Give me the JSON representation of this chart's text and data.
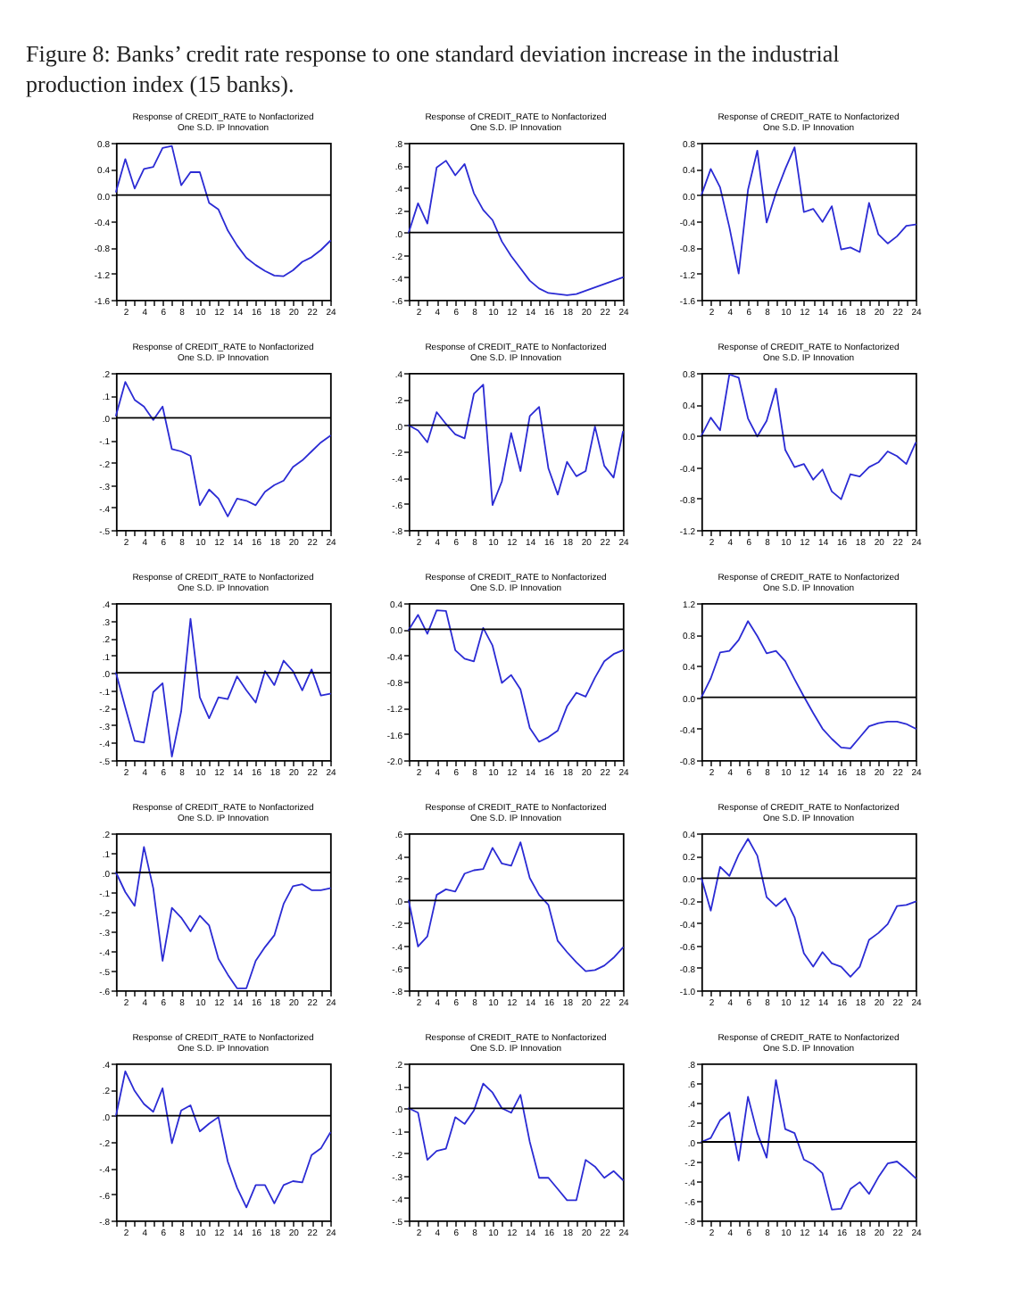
{
  "chart_data": [
    {
      "type": "line",
      "title": "Response of CREDIT_RATE to Nonfactorized\nOne S.D. IP Innovation",
      "annotations": [
        "Figure 8: Banks’ credit rate response to one standard deviation increase in the industrial production index (15 banks)."
      ],
      "x": [
        1,
        2,
        3,
        4,
        5,
        6,
        7,
        8,
        9,
        10,
        11,
        12,
        13,
        14,
        15,
        16,
        17,
        18,
        19,
        20,
        21,
        22,
        23,
        24
      ],
      "series": [
        {
          "color": "#2b2bd4",
          "values": [
            0.05,
            0.55,
            0.1,
            0.4,
            0.43,
            0.72,
            0.75,
            0.15,
            0.35,
            0.35,
            -0.12,
            -0.22,
            -0.54,
            -0.77,
            -0.96,
            -1.07,
            -1.16,
            -1.23,
            -1.24,
            -1.15,
            -1.02,
            -0.95,
            -0.84,
            -0.7
          ]
        }
      ],
      "xlim": [
        1,
        24
      ],
      "xticks": [
        {
          "value": 1,
          "label": null
        },
        2,
        {
          "value": 3,
          "label": null
        },
        4,
        {
          "value": 5,
          "label": null
        },
        6,
        {
          "value": 7,
          "label": null
        },
        8,
        {
          "value": 9,
          "label": null
        },
        10,
        {
          "value": 11,
          "label": null
        },
        12,
        {
          "value": 13,
          "label": null
        },
        14,
        {
          "value": 15,
          "label": null
        },
        16,
        {
          "value": 17,
          "label": null
        },
        18,
        {
          "value": 19,
          "label": null
        },
        20,
        {
          "value": 21,
          "label": null
        },
        22,
        {
          "value": 23,
          "label": null
        },
        24
      ],
      "ylim": [
        -1.6,
        0.8
      ],
      "yticks": [
        -1.6,
        -1.2,
        -0.8,
        -0.4,
        {
          "value": 0,
          "label": "0.0"
        },
        0.4,
        0.8
      ],
      "ref_lines": [
        {
          "axis": "y",
          "value": 0,
          "color": "#000000"
        }
      ]
    },
    {
      "type": "line",
      "title": "Response of CREDIT_RATE to Nonfactorized\nOne S.D. IP Innovation",
      "x": [
        1,
        2,
        3,
        4,
        5,
        6,
        7,
        8,
        9,
        10,
        11,
        12,
        13,
        14,
        15,
        16,
        17,
        18,
        19,
        20,
        21,
        22,
        23,
        24
      ],
      "series": [
        {
          "color": "#2b2bd4",
          "values": [
            0,
            0.26,
            0.08,
            0.58,
            0.64,
            0.51,
            0.61,
            0.35,
            0.2,
            0.11,
            -0.08,
            -0.21,
            -0.32,
            -0.43,
            -0.5,
            -0.54,
            -0.55,
            -0.56,
            -0.55,
            -0.52,
            -0.49,
            -0.46,
            -0.43,
            -0.4
          ]
        }
      ],
      "xlim": [
        1,
        24
      ],
      "xticks": [
        {
          "value": 1,
          "label": null
        },
        2,
        {
          "value": 3,
          "label": null
        },
        4,
        {
          "value": 5,
          "label": null
        },
        6,
        {
          "value": 7,
          "label": null
        },
        8,
        {
          "value": 9,
          "label": null
        },
        10,
        {
          "value": 11,
          "label": null
        },
        12,
        {
          "value": 13,
          "label": null
        },
        14,
        {
          "value": 15,
          "label": null
        },
        16,
        {
          "value": 17,
          "label": null
        },
        18,
        {
          "value": 19,
          "label": null
        },
        20,
        {
          "value": 21,
          "label": null
        },
        22,
        {
          "value": 23,
          "label": null
        },
        24
      ],
      "ylim": [
        -0.6,
        0.8
      ],
      "yticks": [
        {
          "value": -0.6,
          "label": "-.6"
        },
        {
          "value": -0.4,
          "label": "-.4"
        },
        {
          "value": -0.2,
          "label": "-.2"
        },
        {
          "value": 0,
          "label": ".0"
        },
        {
          "value": 0.2,
          "label": ".2"
        },
        {
          "value": 0.4,
          "label": ".4"
        },
        {
          "value": 0.6,
          "label": ".6"
        },
        {
          "value": 0.8,
          "label": ".8"
        }
      ],
      "ref_lines": [
        {
          "axis": "y",
          "value": 0,
          "color": "#000000"
        }
      ]
    },
    {
      "type": "line",
      "title": "Response of CREDIT_RATE to Nonfactorized\nOne S.D. IP Innovation",
      "x": [
        1,
        2,
        3,
        4,
        5,
        6,
        7,
        8,
        9,
        10,
        11,
        12,
        13,
        14,
        15,
        16,
        17,
        18,
        19,
        20,
        21,
        22,
        23,
        24
      ],
      "series": [
        {
          "color": "#2b2bd4",
          "values": [
            0,
            0.4,
            0.12,
            -0.49,
            -1.2,
            0.08,
            0.68,
            -0.42,
            0.03,
            0.4,
            0.73,
            -0.26,
            -0.21,
            -0.41,
            -0.17,
            -0.83,
            -0.8,
            -0.87,
            -0.12,
            -0.6,
            -0.74,
            -0.63,
            -0.47,
            -0.45
          ]
        }
      ],
      "xlim": [
        1,
        24
      ],
      "xticks": [
        {
          "value": 1,
          "label": null
        },
        2,
        {
          "value": 3,
          "label": null
        },
        4,
        {
          "value": 5,
          "label": null
        },
        6,
        {
          "value": 7,
          "label": null
        },
        8,
        {
          "value": 9,
          "label": null
        },
        10,
        {
          "value": 11,
          "label": null
        },
        12,
        {
          "value": 13,
          "label": null
        },
        14,
        {
          "value": 15,
          "label": null
        },
        16,
        {
          "value": 17,
          "label": null
        },
        18,
        {
          "value": 19,
          "label": null
        },
        20,
        {
          "value": 21,
          "label": null
        },
        22,
        {
          "value": 23,
          "label": null
        },
        24
      ],
      "ylim": [
        -1.6,
        0.8
      ],
      "yticks": [
        -1.6,
        -1.2,
        -0.8,
        -0.4,
        {
          "value": 0,
          "label": "0.0"
        },
        0.4,
        0.8
      ],
      "ref_lines": [
        {
          "axis": "y",
          "value": 0,
          "color": "#000000"
        }
      ]
    },
    {
      "type": "line",
      "title": "Response of CREDIT_RATE to Nonfactorized\nOne S.D. IP Innovation",
      "x": [
        1,
        2,
        3,
        4,
        5,
        6,
        7,
        8,
        9,
        10,
        11,
        12,
        13,
        14,
        15,
        16,
        17,
        18,
        19,
        20,
        21,
        22,
        23,
        24
      ],
      "series": [
        {
          "color": "#2b2bd4",
          "values": [
            0.01,
            0.16,
            0.08,
            0.05,
            -0.01,
            0.05,
            -0.14,
            -0.15,
            -0.17,
            -0.39,
            -0.32,
            -0.36,
            -0.44,
            -0.36,
            -0.37,
            -0.39,
            -0.33,
            -0.3,
            -0.28,
            -0.22,
            -0.19,
            -0.15,
            -0.11,
            -0.08
          ]
        }
      ],
      "xlim": [
        1,
        24
      ],
      "xticks": [
        {
          "value": 1,
          "label": null
        },
        2,
        {
          "value": 3,
          "label": null
        },
        4,
        {
          "value": 5,
          "label": null
        },
        6,
        {
          "value": 7,
          "label": null
        },
        8,
        {
          "value": 9,
          "label": null
        },
        10,
        {
          "value": 11,
          "label": null
        },
        12,
        {
          "value": 13,
          "label": null
        },
        14,
        {
          "value": 15,
          "label": null
        },
        16,
        {
          "value": 17,
          "label": null
        },
        18,
        {
          "value": 19,
          "label": null
        },
        20,
        {
          "value": 21,
          "label": null
        },
        22,
        {
          "value": 23,
          "label": null
        },
        24
      ],
      "ylim": [
        -0.5,
        0.2
      ],
      "yticks": [
        {
          "value": -0.5,
          "label": "-.5"
        },
        {
          "value": -0.4,
          "label": "-.4"
        },
        {
          "value": -0.3,
          "label": "-.3"
        },
        {
          "value": -0.2,
          "label": "-.2"
        },
        {
          "value": -0.1,
          "label": "-.1"
        },
        {
          "value": 0,
          "label": ".0"
        },
        {
          "value": 0.1,
          "label": ".1"
        },
        {
          "value": 0.2,
          "label": ".2"
        }
      ],
      "ref_lines": [
        {
          "axis": "y",
          "value": 0,
          "color": "#000000"
        }
      ]
    },
    {
      "type": "line",
      "title": "Response of CREDIT_RATE to Nonfactorized\nOne S.D. IP Innovation",
      "x": [
        1,
        2,
        3,
        4,
        5,
        6,
        7,
        8,
        9,
        10,
        11,
        12,
        13,
        14,
        15,
        16,
        17,
        18,
        19,
        20,
        21,
        22,
        23,
        24
      ],
      "series": [
        {
          "color": "#2b2bd4",
          "values": [
            0,
            -0.04,
            -0.13,
            0.1,
            0.01,
            -0.07,
            -0.1,
            0.24,
            0.31,
            -0.61,
            -0.43,
            -0.06,
            -0.35,
            0.07,
            0.14,
            -0.33,
            -0.53,
            -0.28,
            -0.39,
            -0.35,
            -0.01,
            -0.31,
            -0.4,
            -0.05
          ]
        }
      ],
      "xlim": [
        1,
        24
      ],
      "xticks": [
        {
          "value": 1,
          "label": null
        },
        2,
        {
          "value": 3,
          "label": null
        },
        4,
        {
          "value": 5,
          "label": null
        },
        6,
        {
          "value": 7,
          "label": null
        },
        8,
        {
          "value": 9,
          "label": null
        },
        10,
        {
          "value": 11,
          "label": null
        },
        12,
        {
          "value": 13,
          "label": null
        },
        14,
        {
          "value": 15,
          "label": null
        },
        16,
        {
          "value": 17,
          "label": null
        },
        18,
        {
          "value": 19,
          "label": null
        },
        20,
        {
          "value": 21,
          "label": null
        },
        22,
        {
          "value": 23,
          "label": null
        },
        24
      ],
      "ylim": [
        -0.8,
        0.4
      ],
      "yticks": [
        {
          "value": -0.8,
          "label": "-.8"
        },
        {
          "value": -0.6,
          "label": "-.6"
        },
        {
          "value": -0.4,
          "label": "-.4"
        },
        {
          "value": -0.2,
          "label": "-.2"
        },
        {
          "value": 0,
          "label": ".0"
        },
        {
          "value": 0.2,
          "label": ".2"
        },
        {
          "value": 0.4,
          "label": ".4"
        }
      ],
      "ref_lines": [
        {
          "axis": "y",
          "value": 0,
          "color": "#000000"
        }
      ]
    },
    {
      "type": "line",
      "title": "Response of CREDIT_RATE to Nonfactorized\nOne S.D. IP Innovation",
      "x": [
        1,
        2,
        3,
        4,
        5,
        6,
        7,
        8,
        9,
        10,
        11,
        12,
        13,
        14,
        15,
        16,
        17,
        18,
        19,
        20,
        21,
        22,
        23,
        24
      ],
      "series": [
        {
          "color": "#2b2bd4",
          "values": [
            0,
            0.23,
            0.07,
            0.78,
            0.74,
            0.22,
            -0.01,
            0.19,
            0.6,
            -0.18,
            -0.4,
            -0.36,
            -0.56,
            -0.43,
            -0.71,
            -0.81,
            -0.49,
            -0.52,
            -0.4,
            -0.34,
            -0.2,
            -0.26,
            -0.36,
            -0.09
          ]
        }
      ],
      "xlim": [
        1,
        24
      ],
      "xticks": [
        {
          "value": 1,
          "label": null
        },
        2,
        {
          "value": 3,
          "label": null
        },
        4,
        {
          "value": 5,
          "label": null
        },
        6,
        {
          "value": 7,
          "label": null
        },
        8,
        {
          "value": 9,
          "label": null
        },
        10,
        {
          "value": 11,
          "label": null
        },
        12,
        {
          "value": 13,
          "label": null
        },
        14,
        {
          "value": 15,
          "label": null
        },
        16,
        {
          "value": 17,
          "label": null
        },
        18,
        {
          "value": 19,
          "label": null
        },
        20,
        {
          "value": 21,
          "label": null
        },
        22,
        {
          "value": 23,
          "label": null
        },
        24
      ],
      "ylim": [
        -1.2,
        0.8
      ],
      "yticks": [
        -1.2,
        -0.8,
        -0.4,
        {
          "value": 0,
          "label": "0.0"
        },
        0.4,
        0.8
      ],
      "ref_lines": [
        {
          "axis": "y",
          "value": 0,
          "color": "#000000"
        }
      ]
    },
    {
      "type": "line",
      "title": "Response of CREDIT_RATE to Nonfactorized\nOne S.D. IP Innovation",
      "x": [
        1,
        2,
        3,
        4,
        5,
        6,
        7,
        8,
        9,
        10,
        11,
        12,
        13,
        14,
        15,
        16,
        17,
        18,
        19,
        20,
        21,
        22,
        23,
        24
      ],
      "series": [
        {
          "color": "#2b2bd4",
          "values": [
            0,
            -0.2,
            -0.39,
            -0.4,
            -0.11,
            -0.06,
            -0.48,
            -0.22,
            0.31,
            -0.14,
            -0.26,
            -0.14,
            -0.15,
            -0.02,
            -0.1,
            -0.17,
            0.01,
            -0.07,
            0.07,
            0.01,
            -0.1,
            0.02,
            -0.13,
            -0.12
          ]
        }
      ],
      "xlim": [
        1,
        24
      ],
      "xticks": [
        {
          "value": 1,
          "label": null
        },
        2,
        {
          "value": 3,
          "label": null
        },
        4,
        {
          "value": 5,
          "label": null
        },
        6,
        {
          "value": 7,
          "label": null
        },
        8,
        {
          "value": 9,
          "label": null
        },
        10,
        {
          "value": 11,
          "label": null
        },
        12,
        {
          "value": 13,
          "label": null
        },
        14,
        {
          "value": 15,
          "label": null
        },
        16,
        {
          "value": 17,
          "label": null
        },
        18,
        {
          "value": 19,
          "label": null
        },
        20,
        {
          "value": 21,
          "label": null
        },
        22,
        {
          "value": 23,
          "label": null
        },
        24
      ],
      "ylim": [
        -0.5,
        0.4
      ],
      "yticks": [
        {
          "value": -0.5,
          "label": "-.5"
        },
        {
          "value": -0.4,
          "label": "-.4"
        },
        {
          "value": -0.3,
          "label": "-.3"
        },
        {
          "value": -0.2,
          "label": "-.2"
        },
        {
          "value": -0.1,
          "label": "-.1"
        },
        {
          "value": 0,
          "label": ".0"
        },
        {
          "value": 0.1,
          "label": ".1"
        },
        {
          "value": 0.2,
          "label": ".2"
        },
        {
          "value": 0.3,
          "label": ".3"
        },
        {
          "value": 0.4,
          "label": ".4"
        }
      ],
      "ref_lines": [
        {
          "axis": "y",
          "value": 0,
          "color": "#000000"
        }
      ]
    },
    {
      "type": "line",
      "title": "Response of CREDIT_RATE to Nonfactorized\nOne S.D. IP Innovation",
      "x": [
        1,
        2,
        3,
        4,
        5,
        6,
        7,
        8,
        9,
        10,
        11,
        12,
        13,
        14,
        15,
        16,
        17,
        18,
        19,
        20,
        21,
        22,
        23,
        24
      ],
      "series": [
        {
          "color": "#2b2bd4",
          "values": [
            -0.01,
            0.22,
            -0.07,
            0.29,
            0.28,
            -0.32,
            -0.45,
            -0.49,
            0.02,
            -0.25,
            -0.82,
            -0.7,
            -0.92,
            -1.51,
            -1.72,
            -1.65,
            -1.55,
            -1.18,
            -0.97,
            -1.03,
            -0.74,
            -0.49,
            -0.38,
            -0.32
          ]
        }
      ],
      "xlim": [
        1,
        24
      ],
      "xticks": [
        {
          "value": 1,
          "label": null
        },
        2,
        {
          "value": 3,
          "label": null
        },
        4,
        {
          "value": 5,
          "label": null
        },
        6,
        {
          "value": 7,
          "label": null
        },
        8,
        {
          "value": 9,
          "label": null
        },
        10,
        {
          "value": 11,
          "label": null
        },
        12,
        {
          "value": 13,
          "label": null
        },
        14,
        {
          "value": 15,
          "label": null
        },
        16,
        {
          "value": 17,
          "label": null
        },
        18,
        {
          "value": 19,
          "label": null
        },
        20,
        {
          "value": 21,
          "label": null
        },
        22,
        {
          "value": 23,
          "label": null
        },
        24
      ],
      "ylim": [
        -2.0,
        0.4
      ],
      "yticks": [
        {
          "value": -2,
          "label": "-2.0"
        },
        -1.6,
        -1.2,
        -0.8,
        -0.4,
        {
          "value": 0,
          "label": "0.0"
        },
        0.4
      ],
      "ref_lines": [
        {
          "axis": "y",
          "value": 0,
          "color": "#000000"
        }
      ]
    },
    {
      "type": "line",
      "title": "Response of CREDIT_RATE to Nonfactorized\nOne S.D. IP Innovation",
      "x": [
        1,
        2,
        3,
        4,
        5,
        6,
        7,
        8,
        9,
        10,
        11,
        12,
        13,
        14,
        15,
        16,
        17,
        18,
        19,
        20,
        21,
        22,
        23,
        24
      ],
      "series": [
        {
          "color": "#2b2bd4",
          "values": [
            0,
            0.24,
            0.57,
            0.59,
            0.73,
            0.97,
            0.78,
            0.56,
            0.59,
            0.46,
            0.23,
            0.01,
            -0.2,
            -0.4,
            -0.53,
            -0.64,
            -0.65,
            -0.51,
            -0.37,
            -0.33,
            -0.31,
            -0.31,
            -0.34,
            -0.4
          ]
        }
      ],
      "xlim": [
        1,
        24
      ],
      "xticks": [
        {
          "value": 1,
          "label": null
        },
        2,
        {
          "value": 3,
          "label": null
        },
        4,
        {
          "value": 5,
          "label": null
        },
        6,
        {
          "value": 7,
          "label": null
        },
        8,
        {
          "value": 9,
          "label": null
        },
        10,
        {
          "value": 11,
          "label": null
        },
        12,
        {
          "value": 13,
          "label": null
        },
        14,
        {
          "value": 15,
          "label": null
        },
        16,
        {
          "value": 17,
          "label": null
        },
        18,
        {
          "value": 19,
          "label": null
        },
        20,
        {
          "value": 21,
          "label": null
        },
        22,
        {
          "value": 23,
          "label": null
        },
        24
      ],
      "ylim": [
        -0.8,
        1.2
      ],
      "yticks": [
        -0.8,
        -0.4,
        {
          "value": 0,
          "label": "0.0"
        },
        0.4,
        0.8,
        1.2
      ],
      "ref_lines": [
        {
          "axis": "y",
          "value": 0,
          "color": "#000000"
        }
      ]
    },
    {
      "type": "line",
      "title": "Response of CREDIT_RATE to Nonfactorized\nOne S.D. IP Innovation",
      "x": [
        1,
        2,
        3,
        4,
        5,
        6,
        7,
        8,
        9,
        10,
        11,
        12,
        13,
        14,
        15,
        16,
        17,
        18,
        19,
        20,
        21,
        22,
        23,
        24
      ],
      "series": [
        {
          "color": "#2b2bd4",
          "values": [
            0,
            -0.1,
            -0.17,
            0.13,
            -0.08,
            -0.45,
            -0.18,
            -0.23,
            -0.3,
            -0.22,
            -0.27,
            -0.44,
            -0.52,
            -0.59,
            -0.59,
            -0.45,
            -0.38,
            -0.32,
            -0.16,
            -0.07,
            -0.06,
            -0.09,
            -0.09,
            -0.08
          ]
        }
      ],
      "xlim": [
        1,
        24
      ],
      "xticks": [
        {
          "value": 1,
          "label": null
        },
        2,
        {
          "value": 3,
          "label": null
        },
        4,
        {
          "value": 5,
          "label": null
        },
        6,
        {
          "value": 7,
          "label": null
        },
        8,
        {
          "value": 9,
          "label": null
        },
        10,
        {
          "value": 11,
          "label": null
        },
        12,
        {
          "value": 13,
          "label": null
        },
        14,
        {
          "value": 15,
          "label": null
        },
        16,
        {
          "value": 17,
          "label": null
        },
        18,
        {
          "value": 19,
          "label": null
        },
        20,
        {
          "value": 21,
          "label": null
        },
        22,
        {
          "value": 23,
          "label": null
        },
        24
      ],
      "ylim": [
        -0.6,
        0.2
      ],
      "yticks": [
        {
          "value": -0.6,
          "label": "-.6"
        },
        {
          "value": -0.5,
          "label": "-.5"
        },
        {
          "value": -0.4,
          "label": "-.4"
        },
        {
          "value": -0.3,
          "label": "-.3"
        },
        {
          "value": -0.2,
          "label": "-.2"
        },
        {
          "value": -0.1,
          "label": "-.1"
        },
        {
          "value": 0,
          "label": ".0"
        },
        {
          "value": 0.1,
          "label": ".1"
        },
        {
          "value": 0.2,
          "label": ".2"
        }
      ],
      "ref_lines": [
        {
          "axis": "y",
          "value": 0,
          "color": "#000000"
        }
      ]
    },
    {
      "type": "line",
      "title": "Response of CREDIT_RATE to Nonfactorized\nOne S.D. IP Innovation",
      "x": [
        1,
        2,
        3,
        4,
        5,
        6,
        7,
        8,
        9,
        10,
        11,
        12,
        13,
        14,
        15,
        16,
        17,
        18,
        19,
        20,
        21,
        22,
        23,
        24
      ],
      "series": [
        {
          "color": "#2b2bd4",
          "values": [
            0,
            -0.41,
            -0.32,
            0.05,
            0.1,
            0.08,
            0.24,
            0.27,
            0.28,
            0.47,
            0.33,
            0.31,
            0.52,
            0.2,
            0.05,
            -0.04,
            -0.36,
            -0.46,
            -0.55,
            -0.63,
            -0.62,
            -0.58,
            -0.51,
            -0.42
          ]
        }
      ],
      "xlim": [
        1,
        24
      ],
      "xticks": [
        {
          "value": 1,
          "label": null
        },
        2,
        {
          "value": 3,
          "label": null
        },
        4,
        {
          "value": 5,
          "label": null
        },
        6,
        {
          "value": 7,
          "label": null
        },
        8,
        {
          "value": 9,
          "label": null
        },
        10,
        {
          "value": 11,
          "label": null
        },
        12,
        {
          "value": 13,
          "label": null
        },
        14,
        {
          "value": 15,
          "label": null
        },
        16,
        {
          "value": 17,
          "label": null
        },
        18,
        {
          "value": 19,
          "label": null
        },
        20,
        {
          "value": 21,
          "label": null
        },
        22,
        {
          "value": 23,
          "label": null
        },
        24
      ],
      "ylim": [
        -0.8,
        0.6
      ],
      "yticks": [
        {
          "value": -0.8,
          "label": "-.8"
        },
        {
          "value": -0.6,
          "label": "-.6"
        },
        {
          "value": -0.4,
          "label": "-.4"
        },
        {
          "value": -0.2,
          "label": "-.2"
        },
        {
          "value": 0,
          "label": ".0"
        },
        {
          "value": 0.2,
          "label": ".2"
        },
        {
          "value": 0.4,
          "label": ".4"
        },
        {
          "value": 0.6,
          "label": ".6"
        }
      ],
      "ref_lines": [
        {
          "axis": "y",
          "value": 0,
          "color": "#000000"
        }
      ]
    },
    {
      "type": "line",
      "title": "Response of CREDIT_RATE to Nonfactorized\nOne S.D. IP Innovation",
      "x": [
        1,
        2,
        3,
        4,
        5,
        6,
        7,
        8,
        9,
        10,
        11,
        12,
        13,
        14,
        15,
        16,
        17,
        18,
        19,
        20,
        21,
        22,
        23,
        24
      ],
      "series": [
        {
          "color": "#2b2bd4",
          "values": [
            0,
            -0.29,
            0.1,
            0.02,
            0.21,
            0.35,
            0.2,
            -0.17,
            -0.25,
            -0.18,
            -0.35,
            -0.67,
            -0.79,
            -0.66,
            -0.76,
            -0.79,
            -0.88,
            -0.79,
            -0.55,
            -0.49,
            -0.41,
            -0.25,
            -0.24,
            -0.21
          ]
        }
      ],
      "xlim": [
        1,
        24
      ],
      "xticks": [
        {
          "value": 1,
          "label": null
        },
        2,
        {
          "value": 3,
          "label": null
        },
        4,
        {
          "value": 5,
          "label": null
        },
        6,
        {
          "value": 7,
          "label": null
        },
        8,
        {
          "value": 9,
          "label": null
        },
        10,
        {
          "value": 11,
          "label": null
        },
        12,
        {
          "value": 13,
          "label": null
        },
        14,
        {
          "value": 15,
          "label": null
        },
        16,
        {
          "value": 17,
          "label": null
        },
        18,
        {
          "value": 19,
          "label": null
        },
        20,
        {
          "value": 21,
          "label": null
        },
        22,
        {
          "value": 23,
          "label": null
        },
        24
      ],
      "ylim": [
        -1.0,
        0.4
      ],
      "yticks": [
        {
          "value": -1,
          "label": "-1.0"
        },
        -0.8,
        -0.6,
        -0.4,
        -0.2,
        {
          "value": 0,
          "label": "0.0"
        },
        0.2,
        0.4
      ],
      "ref_lines": [
        {
          "axis": "y",
          "value": 0,
          "color": "#000000"
        }
      ]
    },
    {
      "type": "line",
      "title": "Response of CREDIT_RATE to Nonfactorized\nOne S.D. IP Innovation",
      "x": [
        1,
        2,
        3,
        4,
        5,
        6,
        7,
        8,
        9,
        10,
        11,
        12,
        13,
        14,
        15,
        16,
        17,
        18,
        19,
        20,
        21,
        22,
        23,
        24
      ],
      "series": [
        {
          "color": "#2b2bd4",
          "values": [
            0,
            0.34,
            0.19,
            0.09,
            0.03,
            0.21,
            -0.21,
            0.04,
            0.08,
            -0.12,
            -0.06,
            -0.01,
            -0.35,
            -0.55,
            -0.7,
            -0.53,
            -0.53,
            -0.67,
            -0.53,
            -0.5,
            -0.51,
            -0.3,
            -0.25,
            -0.13
          ]
        }
      ],
      "xlim": [
        1,
        24
      ],
      "xticks": [
        {
          "value": 1,
          "label": null
        },
        2,
        {
          "value": 3,
          "label": null
        },
        4,
        {
          "value": 5,
          "label": null
        },
        6,
        {
          "value": 7,
          "label": null
        },
        8,
        {
          "value": 9,
          "label": null
        },
        10,
        {
          "value": 11,
          "label": null
        },
        12,
        {
          "value": 13,
          "label": null
        },
        14,
        {
          "value": 15,
          "label": null
        },
        16,
        {
          "value": 17,
          "label": null
        },
        18,
        {
          "value": 19,
          "label": null
        },
        20,
        {
          "value": 21,
          "label": null
        },
        22,
        {
          "value": 23,
          "label": null
        },
        24
      ],
      "ylim": [
        -0.8,
        0.4
      ],
      "yticks": [
        {
          "value": -0.8,
          "label": "-.8"
        },
        {
          "value": -0.6,
          "label": "-.6"
        },
        {
          "value": -0.4,
          "label": "-.4"
        },
        {
          "value": -0.2,
          "label": "-.2"
        },
        {
          "value": 0,
          "label": ".0"
        },
        {
          "value": 0.2,
          "label": ".2"
        },
        {
          "value": 0.4,
          "label": ".4"
        }
      ],
      "ref_lines": [
        {
          "axis": "y",
          "value": 0,
          "color": "#000000"
        }
      ]
    },
    {
      "type": "line",
      "title": "Response of CREDIT_RATE to Nonfactorized\nOne S.D. IP Innovation",
      "x": [
        1,
        2,
        3,
        4,
        5,
        6,
        7,
        8,
        9,
        10,
        11,
        12,
        13,
        14,
        15,
        16,
        17,
        18,
        19,
        20,
        21,
        22,
        23,
        24
      ],
      "series": [
        {
          "color": "#2b2bd4",
          "values": [
            0,
            -0.02,
            -0.23,
            -0.19,
            -0.18,
            -0.04,
            -0.07,
            -0.01,
            0.11,
            0.07,
            0,
            -0.02,
            0.06,
            -0.15,
            -0.31,
            -0.31,
            -0.36,
            -0.41,
            -0.41,
            -0.23,
            -0.26,
            -0.31,
            -0.28,
            -0.32
          ]
        }
      ],
      "xlim": [
        1,
        24
      ],
      "xticks": [
        {
          "value": 1,
          "label": null
        },
        2,
        {
          "value": 3,
          "label": null
        },
        4,
        {
          "value": 5,
          "label": null
        },
        6,
        {
          "value": 7,
          "label": null
        },
        8,
        {
          "value": 9,
          "label": null
        },
        10,
        {
          "value": 11,
          "label": null
        },
        12,
        {
          "value": 13,
          "label": null
        },
        14,
        {
          "value": 15,
          "label": null
        },
        16,
        {
          "value": 17,
          "label": null
        },
        18,
        {
          "value": 19,
          "label": null
        },
        20,
        {
          "value": 21,
          "label": null
        },
        22,
        {
          "value": 23,
          "label": null
        },
        24
      ],
      "ylim": [
        -0.5,
        0.2
      ],
      "yticks": [
        {
          "value": -0.5,
          "label": "-.5"
        },
        {
          "value": -0.4,
          "label": "-.4"
        },
        {
          "value": -0.3,
          "label": "-.3"
        },
        {
          "value": -0.2,
          "label": "-.2"
        },
        {
          "value": -0.1,
          "label": "-.1"
        },
        {
          "value": 0,
          "label": ".0"
        },
        {
          "value": 0.1,
          "label": ".1"
        },
        {
          "value": 0.2,
          "label": ".2"
        }
      ],
      "ref_lines": [
        {
          "axis": "y",
          "value": 0,
          "color": "#000000"
        }
      ]
    },
    {
      "type": "line",
      "title": "Response of CREDIT_RATE to Nonfactorized\nOne S.D. IP Innovation",
      "x": [
        1,
        2,
        3,
        4,
        5,
        6,
        7,
        8,
        9,
        10,
        11,
        12,
        13,
        14,
        15,
        16,
        17,
        18,
        19,
        20,
        21,
        22,
        23,
        24
      ],
      "series": [
        {
          "color": "#2b2bd4",
          "values": [
            0,
            0.04,
            0.22,
            0.3,
            -0.19,
            0.46,
            0.09,
            -0.16,
            0.63,
            0.13,
            0.09,
            -0.18,
            -0.23,
            -0.32,
            -0.69,
            -0.68,
            -0.48,
            -0.41,
            -0.53,
            -0.36,
            -0.22,
            -0.2,
            -0.28,
            -0.37
          ]
        }
      ],
      "xlim": [
        1,
        24
      ],
      "xticks": [
        {
          "value": 1,
          "label": null
        },
        2,
        {
          "value": 3,
          "label": null
        },
        4,
        {
          "value": 5,
          "label": null
        },
        6,
        {
          "value": 7,
          "label": null
        },
        8,
        {
          "value": 9,
          "label": null
        },
        10,
        {
          "value": 11,
          "label": null
        },
        12,
        {
          "value": 13,
          "label": null
        },
        14,
        {
          "value": 15,
          "label": null
        },
        16,
        {
          "value": 17,
          "label": null
        },
        18,
        {
          "value": 19,
          "label": null
        },
        20,
        {
          "value": 21,
          "label": null
        },
        22,
        {
          "value": 23,
          "label": null
        },
        24
      ],
      "ylim": [
        -0.8,
        0.8
      ],
      "yticks": [
        {
          "value": -0.8,
          "label": "-.8"
        },
        {
          "value": -0.6,
          "label": "-.6"
        },
        {
          "value": -0.4,
          "label": "-.4"
        },
        {
          "value": -0.2,
          "label": "-.2"
        },
        {
          "value": 0,
          "label": ".0"
        },
        {
          "value": 0.2,
          "label": ".2"
        },
        {
          "value": 0.4,
          "label": ".4"
        },
        {
          "value": 0.6,
          "label": ".6"
        },
        {
          "value": 0.8,
          "label": ".8"
        }
      ],
      "ref_lines": [
        {
          "axis": "y",
          "value": 0,
          "color": "#000000"
        }
      ]
    }
  ]
}
